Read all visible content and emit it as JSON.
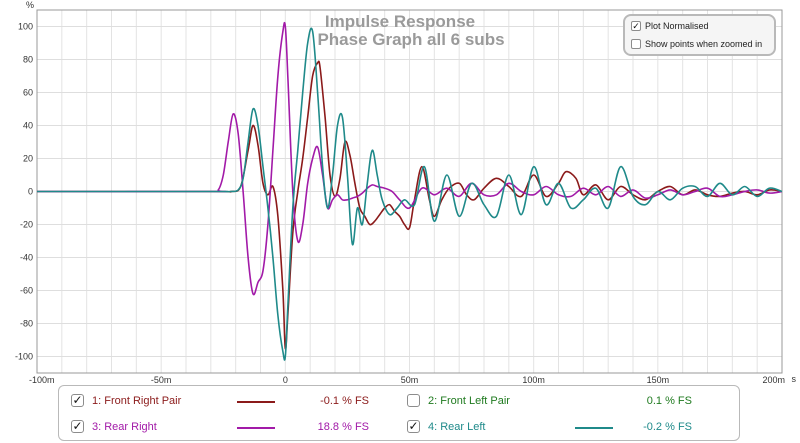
{
  "chart_data": {
    "type": "line",
    "title": "Impulse Response",
    "subtitle": "Phase Graph all 6 subs",
    "ylabel": "%",
    "xunit": "s",
    "xlim": [
      -100,
      200
    ],
    "ylim": [
      -110,
      110
    ],
    "yticks": [
      100,
      80,
      60,
      40,
      20,
      0,
      -20,
      -40,
      -60,
      -80,
      -100
    ],
    "xticks": [
      "-100m",
      "-50m",
      "0",
      "50m",
      "100m",
      "150m",
      "200m"
    ],
    "xtick_values": [
      -100,
      -50,
      0,
      50,
      100,
      150,
      200
    ],
    "grid": true,
    "series": [
      {
        "name": "1: Front Right Pair",
        "color": "#8b1a1a",
        "x": [
          -100,
          -30,
          -22,
          -18,
          -15,
          -13,
          -11,
          -9,
          -7,
          -5,
          -3,
          -1,
          0,
          1,
          3,
          5,
          7,
          9,
          11,
          13,
          14,
          16,
          18,
          20,
          22,
          24,
          26,
          28,
          30,
          32,
          34,
          36,
          38,
          40,
          42,
          44,
          46,
          48,
          50,
          52,
          55,
          58,
          60,
          63,
          66,
          70,
          73,
          76,
          80,
          85,
          90,
          95,
          100,
          105,
          110,
          113,
          117,
          120,
          125,
          130,
          135,
          140,
          145,
          150,
          155,
          160,
          165,
          170,
          175,
          180,
          185,
          190,
          195,
          200
        ],
        "y": [
          0,
          0,
          0,
          3,
          25,
          40,
          28,
          5,
          -2,
          3,
          -15,
          -60,
          -95,
          -75,
          -25,
          0,
          20,
          45,
          70,
          78,
          75,
          45,
          10,
          -3,
          8,
          30,
          22,
          5,
          -10,
          -15,
          -20,
          -18,
          -14,
          -10,
          -8,
          -12,
          -15,
          -20,
          -22,
          -5,
          15,
          -5,
          -15,
          -5,
          2,
          5,
          -2,
          -5,
          2,
          8,
          3,
          -3,
          10,
          -3,
          5,
          12,
          8,
          -2,
          4,
          -5,
          3,
          -2,
          -5,
          0,
          3,
          -2,
          1,
          -2,
          -3,
          -1,
          0,
          -2,
          1,
          0
        ]
      },
      {
        "name": "2: Front Left Pair",
        "color": "#1f7a1f",
        "visible": false,
        "x": [
          -100,
          200
        ],
        "y": [
          0,
          0
        ]
      },
      {
        "name": "3: Rear Right",
        "color": "#a21aa8",
        "x": [
          -100,
          -30,
          -27,
          -25,
          -23,
          -21,
          -19,
          -17,
          -15,
          -13,
          -11,
          -9,
          -7,
          -5,
          -3,
          -1,
          0,
          1,
          3,
          5,
          7,
          9,
          11,
          13,
          15,
          17,
          19,
          21,
          23,
          25,
          27,
          29,
          31,
          33,
          35,
          37,
          40,
          43,
          46,
          50,
          55,
          60,
          65,
          70,
          75,
          80,
          85,
          90,
          95,
          100,
          105,
          110,
          115,
          120,
          125,
          130,
          135,
          140,
          145,
          150,
          155,
          160,
          165,
          170,
          175,
          180,
          185,
          190,
          195,
          200
        ],
        "y": [
          0,
          0,
          1,
          10,
          30,
          47,
          35,
          0,
          -40,
          -62,
          -55,
          -48,
          -20,
          25,
          70,
          97,
          100,
          70,
          0,
          -30,
          -20,
          5,
          20,
          27,
          10,
          -10,
          -5,
          -2,
          -5,
          -5,
          -4,
          -3,
          -1,
          2,
          4,
          3,
          2,
          0,
          -5,
          -10,
          2,
          -2,
          2,
          -3,
          5,
          -2,
          -2,
          5,
          0,
          -2,
          3,
          -2,
          -3,
          2,
          -2,
          3,
          -3,
          1,
          -4,
          -2,
          1,
          -2,
          0,
          2,
          -3,
          -2,
          0,
          1,
          -1,
          0
        ]
      },
      {
        "name": "4: Rear Left",
        "color": "#1f8a8a",
        "x": [
          -100,
          -30,
          -25,
          -22,
          -19,
          -17,
          -15,
          -13,
          -11,
          -9,
          -7,
          -5,
          -3,
          -1,
          0,
          1,
          3,
          5,
          7,
          9,
          11,
          13,
          15,
          17,
          19,
          21,
          23,
          25,
          27,
          29,
          31,
          33,
          35,
          37,
          39,
          42,
          45,
          48,
          52,
          56,
          60,
          65,
          70,
          75,
          80,
          85,
          90,
          95,
          100,
          105,
          110,
          115,
          120,
          125,
          130,
          135,
          140,
          145,
          150,
          155,
          160,
          165,
          170,
          175,
          180,
          185,
          190,
          195,
          200
        ],
        "y": [
          0,
          0,
          0,
          0,
          1,
          8,
          30,
          50,
          40,
          15,
          -10,
          -40,
          -75,
          -97,
          -100,
          -70,
          -10,
          25,
          60,
          90,
          97,
          60,
          15,
          -10,
          10,
          40,
          45,
          10,
          -32,
          -10,
          -20,
          5,
          25,
          10,
          -5,
          -14,
          -10,
          -5,
          -8,
          15,
          -18,
          10,
          -15,
          5,
          -8,
          -15,
          10,
          -14,
          15,
          -8,
          5,
          -10,
          -5,
          2,
          -10,
          15,
          -3,
          -8,
          0,
          -5,
          2,
          3,
          -3,
          5,
          -2,
          3,
          -3,
          2,
          0
        ]
      }
    ]
  },
  "options": {
    "plot_normalised_label": "Plot Normalised",
    "plot_normalised_checked": true,
    "show_points_label": "Show points when zoomed in",
    "show_points_checked": false
  },
  "legend": [
    {
      "label": "1: Front Right Pair",
      "value": "-0.1 % FS",
      "color": "#8b1a1a",
      "checked": true
    },
    {
      "label": "2: Front Left Pair",
      "value": "0.1 % FS",
      "color": "#1f7a1f",
      "checked": false
    },
    {
      "label": "3: Rear Right",
      "value": "18.8 % FS",
      "color": "#a21aa8",
      "checked": true
    },
    {
      "label": "4: Rear Left",
      "value": "-0.2 % FS",
      "color": "#1f8a8a",
      "checked": true
    }
  ]
}
